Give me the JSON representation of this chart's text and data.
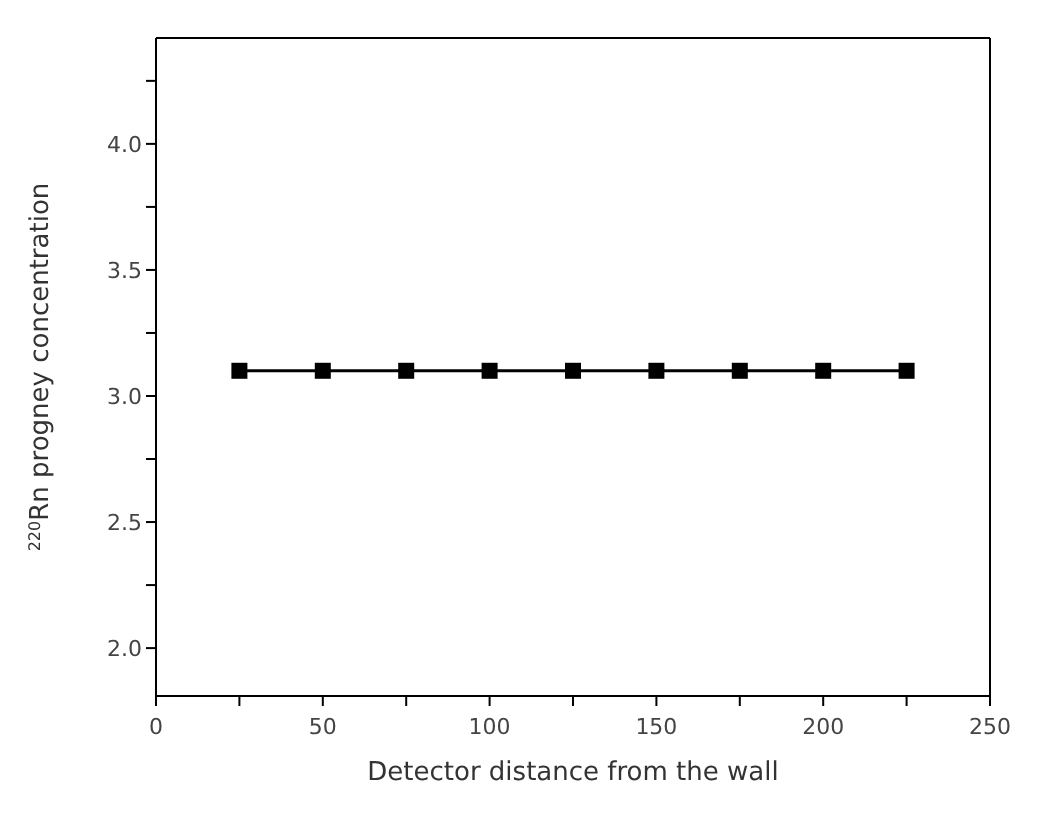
{
  "chart_data": {
    "type": "line",
    "xlabel": "Detector distance from the wall",
    "ylabel": "$^{220}$Rn progney concentration",
    "x": [
      25,
      50,
      75,
      100,
      125,
      150,
      175,
      200,
      225
    ],
    "series": [
      {
        "color": "#000000",
        "values": [
          3.1,
          3.1,
          3.1,
          3.1,
          3.1,
          3.1,
          3.1,
          3.1,
          3.1
        ]
      }
    ],
    "xlim": [
      0,
      250
    ],
    "xticks": [
      0,
      {
        "value": 25,
        "label": null
      },
      50,
      {
        "value": 75,
        "label": null
      },
      100,
      {
        "value": 125,
        "label": null
      },
      150,
      {
        "value": 175,
        "label": null
      },
      200,
      {
        "value": 225,
        "label": null
      },
      250
    ],
    "ylim": [
      1.81,
      4.42
    ],
    "yticks": [
      {
        "value": 2.0,
        "label": "2.0"
      },
      {
        "value": 2.25,
        "label": null
      },
      {
        "value": 2.5,
        "label": "2.5"
      },
      {
        "value": 2.75,
        "label": null
      },
      {
        "value": 3.0,
        "label": "3.0"
      },
      {
        "value": 3.25,
        "label": null
      },
      {
        "value": 3.5,
        "label": "3.5"
      },
      {
        "value": 3.75,
        "label": null
      },
      {
        "value": 4.0,
        "label": "4.0"
      },
      {
        "value": 4.25,
        "label": null
      }
    ],
    "grid": false,
    "legend": false,
    "marker": "square",
    "line_style": "solid"
  }
}
